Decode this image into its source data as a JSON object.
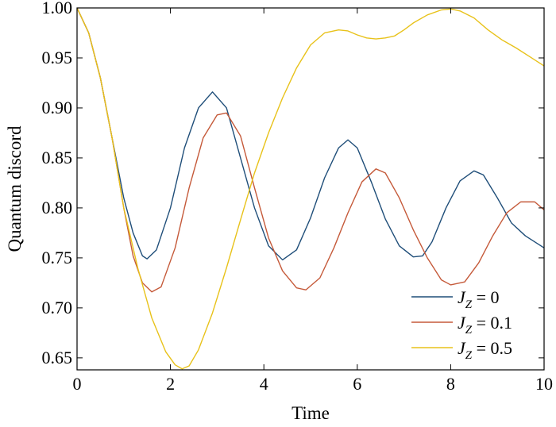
{
  "chart_data": {
    "type": "line",
    "title": "",
    "xlabel": "Time",
    "ylabel": "Quantum discord",
    "xlim": [
      0,
      10
    ],
    "ylim": [
      0.638,
      1.0
    ],
    "x_ticks": [
      0,
      2,
      4,
      6,
      8,
      10
    ],
    "y_ticks": [
      0.65,
      0.7,
      0.75,
      0.8,
      0.85,
      0.9,
      0.95,
      1.0
    ],
    "x_tick_labels": [
      "0",
      "2",
      "4",
      "6",
      "8",
      "10"
    ],
    "y_tick_labels": [
      "0.65",
      "0.70",
      "0.75",
      "0.80",
      "0.85",
      "0.90",
      "0.95",
      "1.00"
    ],
    "grid": false,
    "legend_position": "bottom-right",
    "series": [
      {
        "name": "J_Z = 0",
        "legend_symbol": "J",
        "legend_subscript": "Z",
        "legend_value": " = 0",
        "color": "#1f4e79",
        "x": [
          0,
          0.25,
          0.5,
          0.75,
          1.0,
          1.2,
          1.4,
          1.5,
          1.7,
          2.0,
          2.3,
          2.6,
          2.9,
          3.2,
          3.5,
          3.8,
          4.1,
          4.4,
          4.7,
          5.0,
          5.3,
          5.6,
          5.8,
          6.0,
          6.3,
          6.6,
          6.9,
          7.2,
          7.4,
          7.6,
          7.9,
          8.2,
          8.5,
          8.7,
          9.0,
          9.3,
          9.6,
          10.0
        ],
        "y": [
          1.0,
          0.975,
          0.93,
          0.87,
          0.81,
          0.775,
          0.752,
          0.749,
          0.758,
          0.8,
          0.86,
          0.9,
          0.916,
          0.9,
          0.85,
          0.8,
          0.762,
          0.748,
          0.758,
          0.79,
          0.83,
          0.86,
          0.868,
          0.86,
          0.826,
          0.789,
          0.762,
          0.751,
          0.752,
          0.766,
          0.8,
          0.827,
          0.837,
          0.833,
          0.81,
          0.785,
          0.772,
          0.76
        ]
      },
      {
        "name": "J_Z = 0.1",
        "legend_symbol": "J",
        "legend_subscript": "Z",
        "legend_value": " = 0.1",
        "color": "#c55a3a",
        "x": [
          0,
          0.25,
          0.5,
          0.75,
          1.0,
          1.2,
          1.4,
          1.6,
          1.8,
          2.1,
          2.4,
          2.7,
          3.0,
          3.2,
          3.5,
          3.8,
          4.1,
          4.4,
          4.7,
          4.9,
          5.2,
          5.5,
          5.8,
          6.1,
          6.4,
          6.6,
          6.9,
          7.2,
          7.5,
          7.8,
          8.0,
          8.3,
          8.6,
          8.9,
          9.2,
          9.5,
          9.8,
          10.0
        ],
        "y": [
          1.0,
          0.975,
          0.93,
          0.87,
          0.8,
          0.752,
          0.725,
          0.716,
          0.721,
          0.76,
          0.82,
          0.87,
          0.893,
          0.895,
          0.872,
          0.82,
          0.77,
          0.737,
          0.72,
          0.718,
          0.73,
          0.76,
          0.795,
          0.826,
          0.839,
          0.835,
          0.81,
          0.778,
          0.75,
          0.728,
          0.723,
          0.726,
          0.745,
          0.772,
          0.795,
          0.806,
          0.806,
          0.798
        ]
      },
      {
        "name": "J_Z = 0.5",
        "legend_symbol": "J",
        "legend_subscript": "Z",
        "legend_value": " = 0.5",
        "color": "#e8c21a",
        "x": [
          0,
          0.25,
          0.5,
          0.75,
          1.0,
          1.3,
          1.6,
          1.9,
          2.1,
          2.25,
          2.4,
          2.6,
          2.9,
          3.2,
          3.5,
          3.8,
          4.1,
          4.4,
          4.7,
          5.0,
          5.3,
          5.6,
          5.8,
          6.0,
          6.2,
          6.4,
          6.6,
          6.8,
          7.0,
          7.2,
          7.5,
          7.8,
          8.0,
          8.2,
          8.5,
          8.8,
          9.1,
          9.4,
          9.7,
          10.0
        ],
        "y": [
          1.0,
          0.975,
          0.93,
          0.87,
          0.8,
          0.74,
          0.69,
          0.656,
          0.643,
          0.639,
          0.642,
          0.658,
          0.695,
          0.74,
          0.788,
          0.835,
          0.875,
          0.91,
          0.94,
          0.963,
          0.975,
          0.978,
          0.977,
          0.973,
          0.97,
          0.969,
          0.97,
          0.972,
          0.978,
          0.985,
          0.993,
          0.998,
          0.999,
          0.997,
          0.99,
          0.978,
          0.968,
          0.96,
          0.951,
          0.942
        ]
      }
    ]
  }
}
